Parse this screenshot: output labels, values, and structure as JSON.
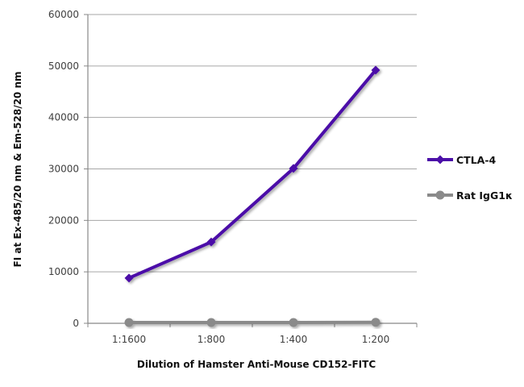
{
  "chart_data": {
    "type": "line",
    "title": "",
    "xlabel": "Dilution of Hamster Anti-Mouse CD152-FITC",
    "ylabel": "FI at Ex-485/20 nm & Em-528/20 nm",
    "categories": [
      "1:1600",
      "1:800",
      "1:400",
      "1:200"
    ],
    "ylim": [
      0,
      60000
    ],
    "yticks": [
      0,
      10000,
      20000,
      30000,
      40000,
      50000,
      60000
    ],
    "grid": {
      "horizontal": true,
      "vertical": false
    },
    "legend_position": "right",
    "series": [
      {
        "name": "CTLA-4",
        "color": "#4b0fa8",
        "marker": "diamond",
        "values": [
          8800,
          15800,
          30100,
          49200
        ]
      },
      {
        "name": "Rat IgG1κ",
        "color": "#8a8a8a",
        "marker": "circle",
        "values": [
          150,
          150,
          150,
          200
        ]
      }
    ]
  }
}
